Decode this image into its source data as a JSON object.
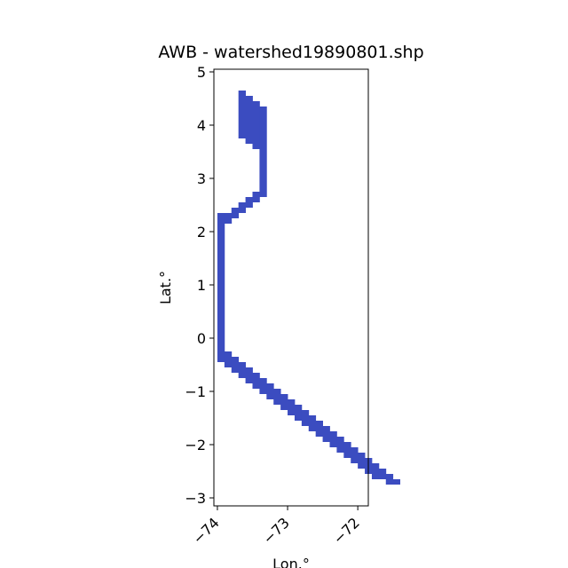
{
  "chart_data": {
    "type": "heatmap",
    "title": "AWB - watershed19890801.shp",
    "xlabel": "Lon.°",
    "ylabel": "Lat.°",
    "xlim": [
      -74.05,
      -71.85
    ],
    "ylim": [
      -3.15,
      5.05
    ],
    "cell_size_deg": 0.1,
    "fill_color": "#3b4cc0",
    "xticks": [
      {
        "value": -74,
        "label": "−74"
      },
      {
        "value": -73,
        "label": "−73"
      },
      {
        "value": -72,
        "label": "−72"
      }
    ],
    "yticks": [
      {
        "value": 5,
        "label": "5"
      },
      {
        "value": 4,
        "label": "4"
      },
      {
        "value": 3,
        "label": "3"
      },
      {
        "value": 2,
        "label": "2"
      },
      {
        "value": 1,
        "label": "1"
      },
      {
        "value": 0,
        "label": "0"
      },
      {
        "value": -1,
        "label": "−1"
      },
      {
        "value": -2,
        "label": "−2"
      },
      {
        "value": -3,
        "label": "−3"
      }
    ],
    "cells": [
      {
        "lon": [
          -73.7,
          -73.6
        ],
        "lat": [
          3.75,
          4.65
        ]
      },
      {
        "lon": [
          -73.6,
          -73.5
        ],
        "lat": [
          3.65,
          4.55
        ]
      },
      {
        "lon": [
          -73.5,
          -73.4
        ],
        "lat": [
          3.55,
          4.45
        ]
      },
      {
        "lon": [
          -73.4,
          -73.3
        ],
        "lat": [
          2.65,
          4.35
        ]
      },
      {
        "lon": [
          -73.5,
          -73.4
        ],
        "lat": [
          2.55,
          2.75
        ]
      },
      {
        "lon": [
          -73.6,
          -73.5
        ],
        "lat": [
          2.45,
          2.65
        ]
      },
      {
        "lon": [
          -73.7,
          -73.6
        ],
        "lat": [
          2.35,
          2.55
        ]
      },
      {
        "lon": [
          -73.8,
          -73.7
        ],
        "lat": [
          2.25,
          2.45
        ]
      },
      {
        "lon": [
          -73.9,
          -73.8
        ],
        "lat": [
          2.15,
          2.35
        ]
      },
      {
        "lon": [
          -74.0,
          -73.9
        ],
        "lat": [
          -0.45,
          2.35
        ]
      },
      {
        "lon": [
          -73.9,
          -73.8
        ],
        "lat": [
          -0.55,
          -0.25
        ]
      },
      {
        "lon": [
          -73.8,
          -73.7
        ],
        "lat": [
          -0.65,
          -0.35
        ]
      },
      {
        "lon": [
          -73.7,
          -73.6
        ],
        "lat": [
          -0.75,
          -0.45
        ]
      },
      {
        "lon": [
          -73.6,
          -73.5
        ],
        "lat": [
          -0.85,
          -0.55
        ]
      },
      {
        "lon": [
          -73.5,
          -73.4
        ],
        "lat": [
          -0.95,
          -0.65
        ]
      },
      {
        "lon": [
          -73.4,
          -73.3
        ],
        "lat": [
          -1.05,
          -0.75
        ]
      },
      {
        "lon": [
          -73.3,
          -73.2
        ],
        "lat": [
          -1.15,
          -0.85
        ]
      },
      {
        "lon": [
          -73.2,
          -73.1
        ],
        "lat": [
          -1.25,
          -0.95
        ]
      },
      {
        "lon": [
          -73.1,
          -73.0
        ],
        "lat": [
          -1.35,
          -1.05
        ]
      },
      {
        "lon": [
          -73.0,
          -72.9
        ],
        "lat": [
          -1.45,
          -1.15
        ]
      },
      {
        "lon": [
          -72.9,
          -72.8
        ],
        "lat": [
          -1.55,
          -1.25
        ]
      },
      {
        "lon": [
          -72.8,
          -72.7
        ],
        "lat": [
          -1.65,
          -1.35
        ]
      },
      {
        "lon": [
          -72.7,
          -72.6
        ],
        "lat": [
          -1.75,
          -1.45
        ]
      },
      {
        "lon": [
          -72.6,
          -72.5
        ],
        "lat": [
          -1.85,
          -1.55
        ]
      },
      {
        "lon": [
          -72.5,
          -72.4
        ],
        "lat": [
          -1.95,
          -1.65
        ]
      },
      {
        "lon": [
          -72.4,
          -72.3
        ],
        "lat": [
          -2.05,
          -1.75
        ]
      },
      {
        "lon": [
          -72.3,
          -72.2
        ],
        "lat": [
          -2.15,
          -1.85
        ]
      },
      {
        "lon": [
          -72.2,
          -72.1
        ],
        "lat": [
          -2.25,
          -1.95
        ]
      },
      {
        "lon": [
          -72.1,
          -72.0
        ],
        "lat": [
          -2.35,
          -2.05
        ]
      },
      {
        "lon": [
          -72.0,
          -71.9
        ],
        "lat": [
          -2.45,
          -2.15
        ]
      },
      {
        "lon": [
          -71.9,
          -71.8
        ],
        "lat": [
          -2.55,
          -2.25
        ]
      },
      {
        "lon": [
          -71.8,
          -71.7
        ],
        "lat": [
          -2.65,
          -2.35
        ]
      },
      {
        "lon": [
          -71.7,
          -71.6
        ],
        "lat": [
          -2.65,
          -2.45
        ]
      },
      {
        "lon": [
          -71.6,
          -71.5
        ],
        "lat": [
          -2.75,
          -2.55
        ]
      },
      {
        "lon": [
          -71.5,
          -71.4
        ],
        "lat": [
          -2.75,
          -2.65
        ]
      }
    ]
  }
}
